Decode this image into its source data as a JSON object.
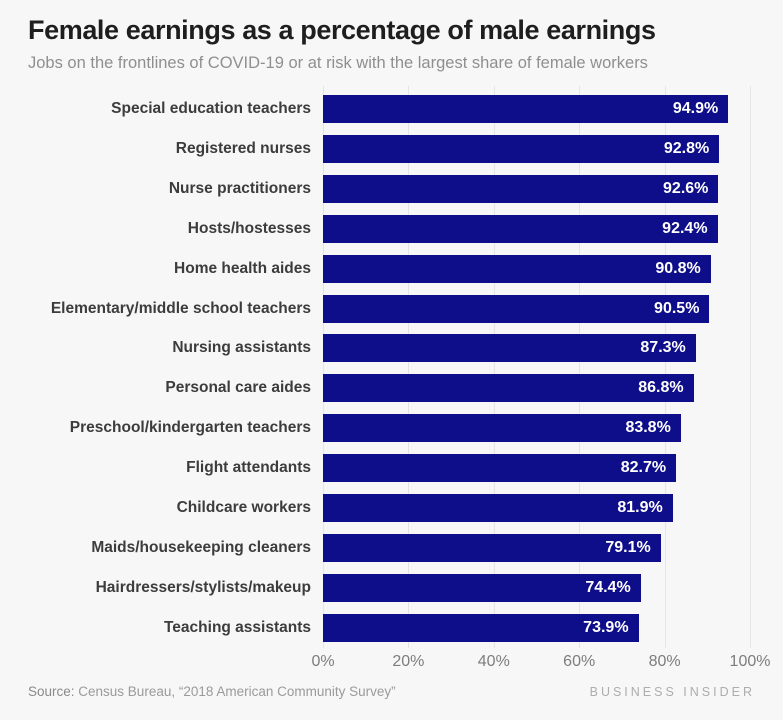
{
  "header": {
    "title": "Female earnings as a percentage of male earnings",
    "subtitle": "Jobs on the frontlines of COVID-19 or at risk with the largest share of female workers"
  },
  "footer": {
    "source_prefix": "Source:",
    "source_text": " Census Bureau, “2018 American Community Survey”",
    "brand": "BUSINESS INSIDER"
  },
  "chart_data": {
    "type": "bar",
    "orientation": "horizontal",
    "title": "Female earnings as a percentage of male earnings",
    "subtitle": "Jobs on the frontlines of COVID-19 or at risk with the largest share of female workers",
    "categories": [
      "Special education teachers",
      "Registered nurses",
      "Nurse practitioners",
      "Hosts/hostesses",
      "Home health aides",
      "Elementary/middle school teachers",
      "Nursing assistants",
      "Personal care aides",
      "Preschool/kindergarten teachers",
      "Flight attendants",
      "Childcare workers",
      "Maids/housekeeping cleaners",
      "Hairdressers/stylists/makeup",
      "Teaching assistants"
    ],
    "values": [
      94.9,
      92.8,
      92.6,
      92.4,
      90.8,
      90.5,
      87.3,
      86.8,
      83.8,
      82.7,
      81.9,
      79.1,
      74.4,
      73.9
    ],
    "value_suffix": "%",
    "xlim": [
      0,
      100
    ],
    "x_ticks": [
      0,
      20,
      40,
      60,
      80,
      100
    ],
    "x_tick_labels": [
      "0%",
      "20%",
      "40%",
      "60%",
      "80%",
      "100%"
    ],
    "xlabel": "",
    "ylabel": "",
    "grid": true,
    "legend": false,
    "bar_color": "#0e0d8a",
    "grid_color": "#e5e5e7",
    "value_label_color": "#ffffff",
    "background_color": "#f7f7f8"
  }
}
